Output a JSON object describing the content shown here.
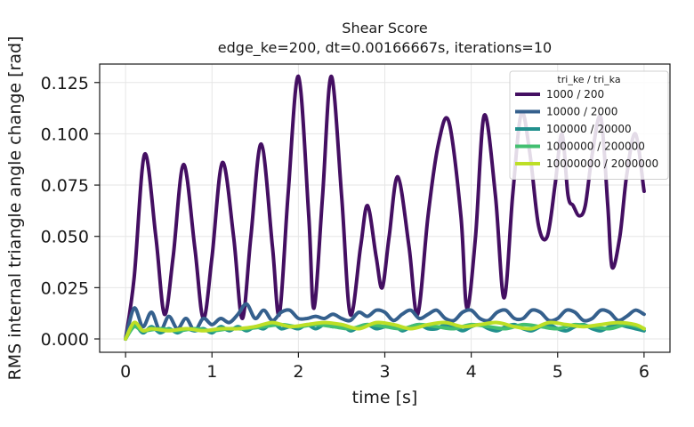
{
  "chart_data": {
    "type": "line",
    "title": "Shear Score",
    "subtitle": "edge_ke=200, dt=0.00166667s, iterations=10",
    "xlabel": "time [s]",
    "ylabel": "RMS internal triangle angle change [rad]",
    "xlim": [
      -0.3,
      6.3
    ],
    "ylim": [
      -0.0065,
      0.134
    ],
    "x_ticks": [
      0,
      1,
      2,
      3,
      4,
      5,
      6
    ],
    "x_tick_labels": [
      "0",
      "1",
      "2",
      "3",
      "4",
      "5",
      "6"
    ],
    "y_ticks": [
      0,
      0.025,
      0.05,
      0.075,
      0.1,
      0.125
    ],
    "y_tick_labels": [
      "0.000",
      "0.025",
      "0.050",
      "0.075",
      "0.100",
      "0.125"
    ],
    "grid": true,
    "legend": {
      "title": "tri_ke / tri_ka",
      "placement": "top-right"
    },
    "series": [
      {
        "name": "1000 / 200",
        "color": "#440f62",
        "points": [
          [
            0,
            0
          ],
          [
            0.1,
            0.03
          ],
          [
            0.22,
            0.09
          ],
          [
            0.35,
            0.05
          ],
          [
            0.45,
            0.012
          ],
          [
            0.55,
            0.04
          ],
          [
            0.67,
            0.085
          ],
          [
            0.8,
            0.045
          ],
          [
            0.9,
            0.01
          ],
          [
            1.0,
            0.04
          ],
          [
            1.12,
            0.086
          ],
          [
            1.25,
            0.05
          ],
          [
            1.35,
            0.01
          ],
          [
            1.45,
            0.05
          ],
          [
            1.57,
            0.095
          ],
          [
            1.7,
            0.045
          ],
          [
            1.78,
            0.012
          ],
          [
            1.88,
            0.07
          ],
          [
            2.0,
            0.128
          ],
          [
            2.12,
            0.06
          ],
          [
            2.18,
            0.015
          ],
          [
            2.28,
            0.07
          ],
          [
            2.38,
            0.128
          ],
          [
            2.5,
            0.07
          ],
          [
            2.6,
            0.012
          ],
          [
            2.72,
            0.045
          ],
          [
            2.8,
            0.065
          ],
          [
            2.9,
            0.04
          ],
          [
            2.97,
            0.025
          ],
          [
            3.05,
            0.05
          ],
          [
            3.15,
            0.079
          ],
          [
            3.28,
            0.045
          ],
          [
            3.38,
            0.012
          ],
          [
            3.5,
            0.06
          ],
          [
            3.62,
            0.095
          ],
          [
            3.74,
            0.106
          ],
          [
            3.88,
            0.06
          ],
          [
            3.95,
            0.015
          ],
          [
            4.05,
            0.05
          ],
          [
            4.15,
            0.109
          ],
          [
            4.28,
            0.07
          ],
          [
            4.38,
            0.02
          ],
          [
            4.48,
            0.07
          ],
          [
            4.58,
            0.11
          ],
          [
            4.68,
            0.09
          ],
          [
            4.78,
            0.055
          ],
          [
            4.88,
            0.05
          ],
          [
            4.97,
            0.075
          ],
          [
            5.05,
            0.1
          ],
          [
            5.12,
            0.07
          ],
          [
            5.18,
            0.065
          ],
          [
            5.25,
            0.06
          ],
          [
            5.32,
            0.065
          ],
          [
            5.4,
            0.09
          ],
          [
            5.5,
            0.108
          ],
          [
            5.58,
            0.065
          ],
          [
            5.63,
            0.035
          ],
          [
            5.72,
            0.05
          ],
          [
            5.8,
            0.08
          ],
          [
            5.9,
            0.1
          ],
          [
            6.0,
            0.072
          ]
        ]
      },
      {
        "name": "10000 / 2000",
        "color": "#35608d",
        "points": [
          [
            0,
            0
          ],
          [
            0.1,
            0.015
          ],
          [
            0.2,
            0.006
          ],
          [
            0.3,
            0.013
          ],
          [
            0.4,
            0.004
          ],
          [
            0.5,
            0.011
          ],
          [
            0.6,
            0.005
          ],
          [
            0.7,
            0.01
          ],
          [
            0.8,
            0.004
          ],
          [
            0.9,
            0.01
          ],
          [
            1.0,
            0.007
          ],
          [
            1.1,
            0.01
          ],
          [
            1.2,
            0.008
          ],
          [
            1.3,
            0.012
          ],
          [
            1.4,
            0.017
          ],
          [
            1.5,
            0.01
          ],
          [
            1.6,
            0.014
          ],
          [
            1.7,
            0.009
          ],
          [
            1.8,
            0.013
          ],
          [
            1.9,
            0.014
          ],
          [
            2.0,
            0.01
          ],
          [
            2.1,
            0.01
          ],
          [
            2.2,
            0.011
          ],
          [
            2.3,
            0.01
          ],
          [
            2.4,
            0.012
          ],
          [
            2.5,
            0.01
          ],
          [
            2.6,
            0.009
          ],
          [
            2.7,
            0.013
          ],
          [
            2.8,
            0.011
          ],
          [
            2.9,
            0.014
          ],
          [
            3.0,
            0.013
          ],
          [
            3.1,
            0.009
          ],
          [
            3.2,
            0.012
          ],
          [
            3.3,
            0.014
          ],
          [
            3.4,
            0.01
          ],
          [
            3.5,
            0.012
          ],
          [
            3.6,
            0.014
          ],
          [
            3.7,
            0.01
          ],
          [
            3.8,
            0.009
          ],
          [
            3.9,
            0.013
          ],
          [
            4.0,
            0.014
          ],
          [
            4.1,
            0.01
          ],
          [
            4.2,
            0.009
          ],
          [
            4.3,
            0.013
          ],
          [
            4.4,
            0.014
          ],
          [
            4.5,
            0.01
          ],
          [
            4.6,
            0.01
          ],
          [
            4.7,
            0.014
          ],
          [
            4.8,
            0.013
          ],
          [
            4.9,
            0.009
          ],
          [
            5.0,
            0.01
          ],
          [
            5.1,
            0.014
          ],
          [
            5.2,
            0.013
          ],
          [
            5.3,
            0.009
          ],
          [
            5.4,
            0.01
          ],
          [
            5.5,
            0.014
          ],
          [
            5.6,
            0.013
          ],
          [
            5.7,
            0.009
          ],
          [
            5.8,
            0.011
          ],
          [
            5.9,
            0.014
          ],
          [
            6.0,
            0.012
          ]
        ]
      },
      {
        "name": "100000 / 20000",
        "color": "#21908d",
        "points": [
          [
            0,
            0
          ],
          [
            0.1,
            0.007
          ],
          [
            0.2,
            0.003
          ],
          [
            0.3,
            0.006
          ],
          [
            0.4,
            0.003
          ],
          [
            0.5,
            0.005
          ],
          [
            0.6,
            0.003
          ],
          [
            0.7,
            0.005
          ],
          [
            0.8,
            0.004
          ],
          [
            0.9,
            0.005
          ],
          [
            1.0,
            0.003
          ],
          [
            1.1,
            0.006
          ],
          [
            1.2,
            0.004
          ],
          [
            1.3,
            0.006
          ],
          [
            1.4,
            0.004
          ],
          [
            1.5,
            0.006
          ],
          [
            1.6,
            0.005
          ],
          [
            1.7,
            0.008
          ],
          [
            1.8,
            0.005
          ],
          [
            1.9,
            0.006
          ],
          [
            2.0,
            0.005
          ],
          [
            2.1,
            0.007
          ],
          [
            2.2,
            0.005
          ],
          [
            2.3,
            0.007
          ],
          [
            2.4,
            0.006
          ],
          [
            2.5,
            0.007
          ],
          [
            2.6,
            0.004
          ],
          [
            2.7,
            0.006
          ],
          [
            2.8,
            0.007
          ],
          [
            2.9,
            0.005
          ],
          [
            3.0,
            0.006
          ],
          [
            3.1,
            0.007
          ],
          [
            3.2,
            0.004
          ],
          [
            3.3,
            0.006
          ],
          [
            3.4,
            0.007
          ],
          [
            3.5,
            0.005
          ],
          [
            3.6,
            0.005
          ],
          [
            3.7,
            0.007
          ],
          [
            3.8,
            0.006
          ],
          [
            3.9,
            0.004
          ],
          [
            4.0,
            0.006
          ],
          [
            4.1,
            0.007
          ],
          [
            4.2,
            0.005
          ],
          [
            4.3,
            0.004
          ],
          [
            4.4,
            0.006
          ],
          [
            4.5,
            0.007
          ],
          [
            4.6,
            0.005
          ],
          [
            4.7,
            0.004
          ],
          [
            4.8,
            0.006
          ],
          [
            4.9,
            0.007
          ],
          [
            5.0,
            0.005
          ],
          [
            5.1,
            0.004
          ],
          [
            5.2,
            0.006
          ],
          [
            5.3,
            0.007
          ],
          [
            5.4,
            0.005
          ],
          [
            5.5,
            0.004
          ],
          [
            5.6,
            0.006
          ],
          [
            5.7,
            0.007
          ],
          [
            5.8,
            0.006
          ],
          [
            5.9,
            0.005
          ],
          [
            6.0,
            0.004
          ]
        ]
      },
      {
        "name": "1000000 / 200000",
        "color": "#43bf71",
        "points": [
          [
            0,
            0
          ],
          [
            0.1,
            0.006
          ],
          [
            0.2,
            0.004
          ],
          [
            0.4,
            0.005
          ],
          [
            0.6,
            0.004
          ],
          [
            0.8,
            0.005
          ],
          [
            1.0,
            0.004
          ],
          [
            1.2,
            0.005
          ],
          [
            1.4,
            0.005
          ],
          [
            1.6,
            0.006
          ],
          [
            1.8,
            0.007
          ],
          [
            2.0,
            0.006
          ],
          [
            2.2,
            0.007
          ],
          [
            2.4,
            0.006
          ],
          [
            2.6,
            0.005
          ],
          [
            2.8,
            0.007
          ],
          [
            3.0,
            0.006
          ],
          [
            3.2,
            0.005
          ],
          [
            3.4,
            0.007
          ],
          [
            3.6,
            0.006
          ],
          [
            3.8,
            0.005
          ],
          [
            4.0,
            0.007
          ],
          [
            4.2,
            0.006
          ],
          [
            4.4,
            0.005
          ],
          [
            4.6,
            0.007
          ],
          [
            4.8,
            0.006
          ],
          [
            5.0,
            0.005
          ],
          [
            5.2,
            0.007
          ],
          [
            5.4,
            0.006
          ],
          [
            5.6,
            0.005
          ],
          [
            5.8,
            0.007
          ],
          [
            6.0,
            0.005
          ]
        ]
      },
      {
        "name": "10000000 / 2000000",
        "color": "#bddf26",
        "points": [
          [
            0,
            0
          ],
          [
            0.1,
            0.008
          ],
          [
            0.2,
            0.004
          ],
          [
            0.3,
            0.005
          ],
          [
            0.5,
            0.004
          ],
          [
            0.7,
            0.005
          ],
          [
            0.9,
            0.004
          ],
          [
            1.1,
            0.005
          ],
          [
            1.3,
            0.005
          ],
          [
            1.5,
            0.006
          ],
          [
            1.7,
            0.008
          ],
          [
            1.9,
            0.006
          ],
          [
            2.1,
            0.007
          ],
          [
            2.3,
            0.008
          ],
          [
            2.5,
            0.007
          ],
          [
            2.7,
            0.005
          ],
          [
            2.9,
            0.008
          ],
          [
            3.1,
            0.007
          ],
          [
            3.3,
            0.005
          ],
          [
            3.5,
            0.007
          ],
          [
            3.7,
            0.008
          ],
          [
            3.9,
            0.006
          ],
          [
            4.1,
            0.007
          ],
          [
            4.3,
            0.008
          ],
          [
            4.5,
            0.006
          ],
          [
            4.7,
            0.005
          ],
          [
            4.9,
            0.008
          ],
          [
            5.1,
            0.007
          ],
          [
            5.3,
            0.006
          ],
          [
            5.5,
            0.007
          ],
          [
            5.7,
            0.008
          ],
          [
            5.9,
            0.007
          ],
          [
            6.0,
            0.005
          ]
        ]
      }
    ]
  }
}
